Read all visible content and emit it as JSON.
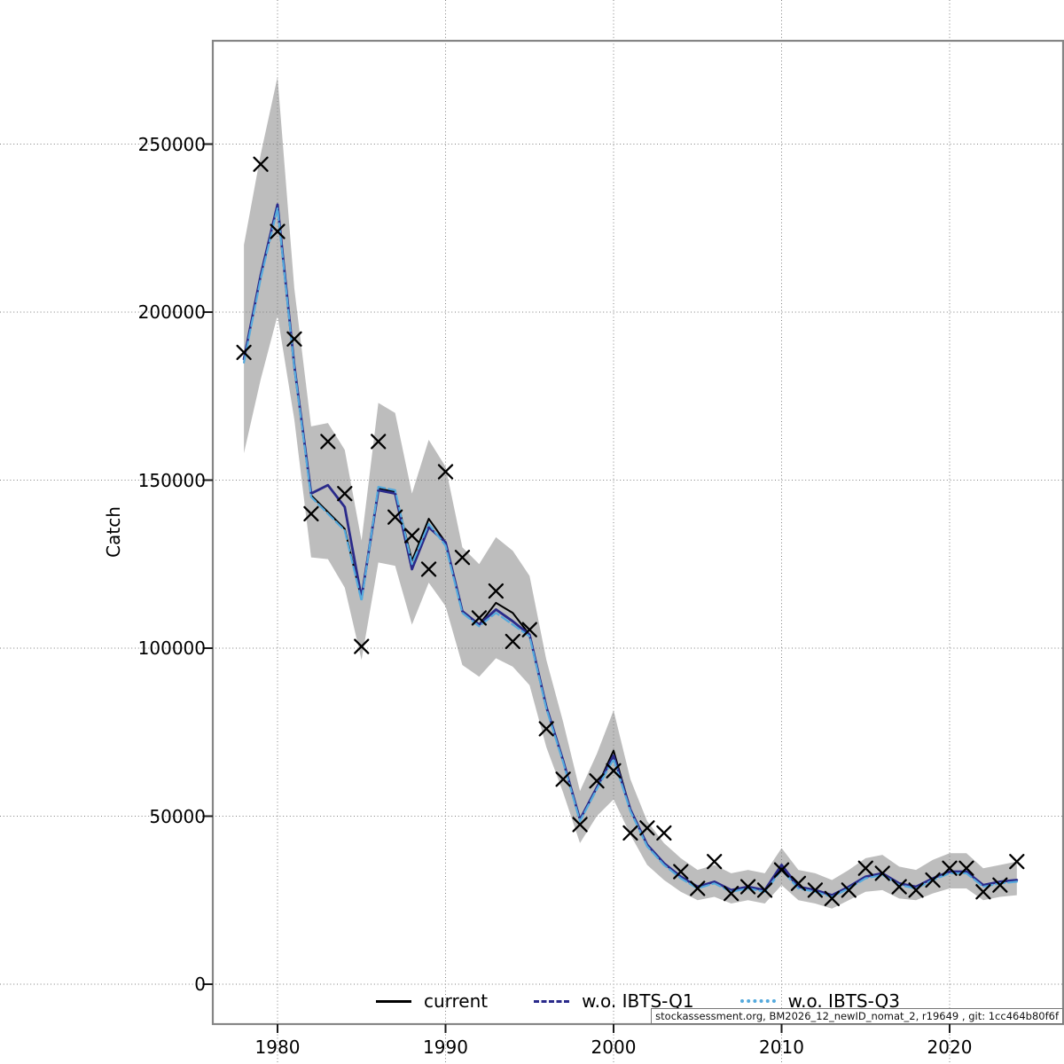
{
  "chart_data": {
    "type": "line",
    "title": "",
    "xlabel": "",
    "ylabel": "Catch",
    "grid": "dotted",
    "legend_position": "bottom-inside",
    "xlim": [
      1976.2,
      2026.8
    ],
    "ylim": [
      -12000,
      281000
    ],
    "xticks": [
      1980,
      1990,
      2000,
      2010,
      2020
    ],
    "yticks": [
      0,
      50000,
      100000,
      150000,
      200000,
      250000
    ],
    "x": [
      1978,
      1979,
      1980,
      1981,
      1982,
      1983,
      1984,
      1985,
      1986,
      1987,
      1988,
      1989,
      1990,
      1991,
      1992,
      1993,
      1994,
      1995,
      1996,
      1997,
      1998,
      1999,
      2000,
      2001,
      2002,
      2003,
      2004,
      2005,
      2006,
      2007,
      2008,
      2009,
      2010,
      2011,
      2012,
      2013,
      2014,
      2015,
      2016,
      2017,
      2018,
      2019,
      2020,
      2021,
      2022,
      2023,
      2024
    ],
    "series": [
      {
        "name": "current",
        "color": "#000000",
        "style": "solid",
        "width": 2,
        "values": [
          186000,
          211000,
          232000,
          184000,
          145500,
          140500,
          135500,
          114500,
          147500,
          146500,
          126000,
          138500,
          131500,
          111000,
          107000,
          113500,
          110500,
          104000,
          82500,
          66500,
          49000,
          58500,
          69500,
          52000,
          41500,
          36000,
          32000,
          29000,
          30500,
          28000,
          29000,
          28000,
          34500,
          29000,
          28000,
          26500,
          29000,
          32000,
          33000,
          30000,
          29000,
          31500,
          33500,
          33500,
          29500,
          30500,
          31000
        ]
      },
      {
        "name": "w.o. IBTS-Q1",
        "color": "#2a2a8a",
        "style": "dashed",
        "width": 2.8,
        "values": [
          186000,
          211000,
          232000,
          184000,
          146000,
          148500,
          142000,
          115000,
          147000,
          146000,
          123500,
          136000,
          131500,
          111000,
          107000,
          111500,
          108000,
          104000,
          82500,
          66500,
          49000,
          58500,
          68000,
          52000,
          41500,
          36000,
          32000,
          29000,
          30500,
          28000,
          29000,
          28000,
          35500,
          29000,
          28000,
          26500,
          29000,
          32000,
          33000,
          30000,
          29000,
          31500,
          33500,
          33500,
          29500,
          30500,
          31000
        ]
      },
      {
        "name": "w.o. IBTS-Q3",
        "color": "#55aadd",
        "style": "dotted",
        "width": 2.2,
        "values": [
          185000,
          210000,
          231000,
          183500,
          145000,
          140000,
          135000,
          114000,
          148000,
          147000,
          125000,
          137000,
          130500,
          110500,
          106500,
          110500,
          107000,
          103500,
          82000,
          66000,
          48500,
          58000,
          67000,
          51500,
          41000,
          35500,
          31500,
          28500,
          30000,
          27500,
          28500,
          27500,
          34000,
          28500,
          27500,
          26000,
          28500,
          31500,
          32500,
          29500,
          28500,
          31000,
          33000,
          33000,
          29000,
          30000,
          30500
        ]
      }
    ],
    "observations": {
      "marker": "x",
      "color": "#000000",
      "values": [
        188000,
        244000,
        224000,
        192000,
        140000,
        161500,
        146000,
        100500,
        161500,
        139000,
        133500,
        123500,
        152500,
        127000,
        109000,
        117000,
        102000,
        105500,
        76000,
        61000,
        47500,
        60500,
        63500,
        45000,
        46500,
        45000,
        33500,
        28500,
        36500,
        27000,
        29000,
        28000,
        34000,
        30000,
        28000,
        25500,
        28000,
        34500,
        33000,
        29000,
        28000,
        31000,
        34500,
        34500,
        27500,
        29500,
        36500
      ]
    },
    "band": {
      "color": "#bdbdbd",
      "upper": [
        220000,
        247000,
        270000,
        207000,
        166000,
        167000,
        159000,
        132000,
        173000,
        170000,
        146000,
        162000,
        154000,
        130000,
        125000,
        133000,
        129000,
        121500,
        96500,
        78000,
        57500,
        68500,
        81500,
        61000,
        48500,
        42000,
        37500,
        34000,
        35500,
        33000,
        34000,
        33000,
        40500,
        34000,
        33000,
        31000,
        34000,
        37500,
        38500,
        35000,
        34000,
        37000,
        39000,
        39000,
        34500,
        35500,
        36500
      ],
      "lower": [
        158000,
        180000,
        199000,
        168000,
        127000,
        126500,
        118000,
        96500,
        125500,
        124500,
        107000,
        119500,
        112500,
        95000,
        91500,
        97000,
        94500,
        89000,
        70500,
        57000,
        42000,
        50000,
        55000,
        44500,
        35500,
        31000,
        27500,
        25000,
        26000,
        24000,
        25000,
        24000,
        29500,
        25000,
        24000,
        22500,
        25000,
        27500,
        28000,
        25500,
        25000,
        27000,
        28500,
        28500,
        25000,
        26000,
        26500
      ]
    },
    "footer": "stockassessment.org, BM2026_12_newID_nomat_2, r19649 , git: 1cc464b80f6f"
  }
}
